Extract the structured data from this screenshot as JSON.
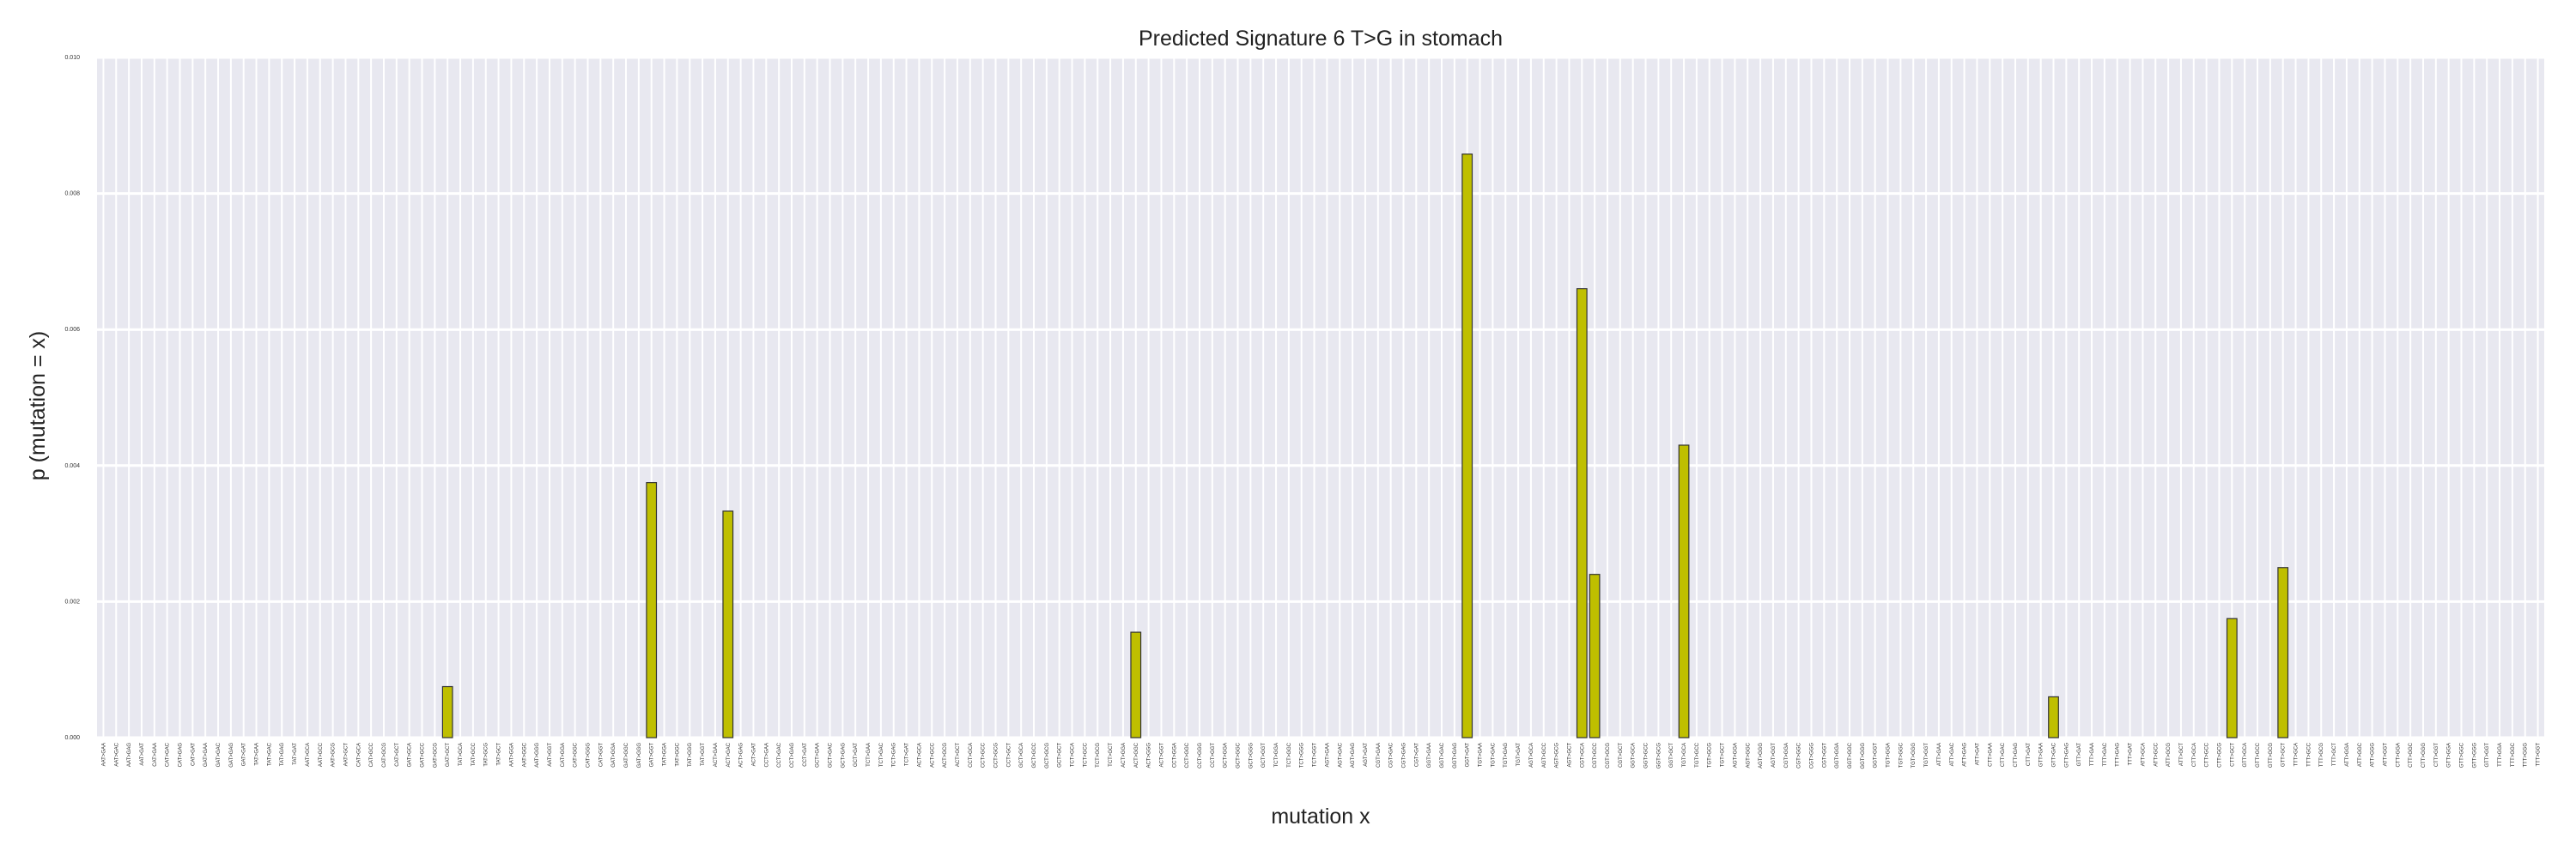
{
  "chart_data": {
    "type": "bar",
    "title": "Predicted Signature 6 T>G in stomach",
    "xlabel": "mutation x",
    "ylabel": "p (mutation = x)",
    "ylim": [
      0,
      0.01
    ],
    "yticks": [
      "0.000",
      "0.002",
      "0.004",
      "0.006",
      "0.008",
      "0.010"
    ],
    "grid": true,
    "background_color": "#e8e8f0",
    "grid_color": "#ffffff",
    "bar_color": "#bfbf00",
    "bar_edge_color": "#333333",
    "categories": [
      "AAT>GAA",
      "AAT>GAC",
      "AAT>GAG",
      "AAT>GAT",
      "CAT>GAA",
      "CAT>GAC",
      "CAT>GAG",
      "CAT>GAT",
      "GAT>GAA",
      "GAT>GAC",
      "GAT>GAG",
      "GAT>GAT",
      "TAT>GAA",
      "TAT>GAC",
      "TAT>GAG",
      "TAT>GAT",
      "AAT>GCA",
      "AAT>GCC",
      "AAT>GCG",
      "AAT>GCT",
      "CAT>GCA",
      "CAT>GCC",
      "CAT>GCG",
      "CAT>GCT",
      "GAT>GCA",
      "GAT>GCC",
      "GAT>GCG",
      "GAT>GCT",
      "TAT>GCA",
      "TAT>GCC",
      "TAT>GCG",
      "TAT>GCT",
      "AAT>GGA",
      "AAT>GGC",
      "AAT>GGG",
      "AAT>GGT",
      "CAT>GGA",
      "CAT>GGC",
      "CAT>GGG",
      "CAT>GGT",
      "GAT>GGA",
      "GAT>GGC",
      "GAT>GGG",
      "GAT>GGT",
      "TAT>GGA",
      "TAT>GGC",
      "TAT>GGG",
      "TAT>GGT",
      "ACT>GAA",
      "ACT>GAC",
      "ACT>GAG",
      "ACT>GAT",
      "CCT>GAA",
      "CCT>GAC",
      "CCT>GAG",
      "CCT>GAT",
      "GCT>GAA",
      "GCT>GAC",
      "GCT>GAG",
      "GCT>GAT",
      "TCT>GAA",
      "TCT>GAC",
      "TCT>GAG",
      "TCT>GAT",
      "ACT>GCA",
      "ACT>GCC",
      "ACT>GCG",
      "ACT>GCT",
      "CCT>GCA",
      "CCT>GCC",
      "CCT>GCG",
      "CCT>GCT",
      "GCT>GCA",
      "GCT>GCC",
      "GCT>GCG",
      "GCT>GCT",
      "TCT>GCA",
      "TCT>GCC",
      "TCT>GCG",
      "TCT>GCT",
      "ACT>GGA",
      "ACT>GGC",
      "ACT>GGG",
      "ACT>GGT",
      "CCT>GGA",
      "CCT>GGC",
      "CCT>GGG",
      "CCT>GGT",
      "GCT>GGA",
      "GCT>GGC",
      "GCT>GGG",
      "GCT>GGT",
      "TCT>GGA",
      "TCT>GGC",
      "TCT>GGG",
      "TCT>GGT",
      "AGT>GAA",
      "AGT>GAC",
      "AGT>GAG",
      "AGT>GAT",
      "CGT>GAA",
      "CGT>GAC",
      "CGT>GAG",
      "CGT>GAT",
      "GGT>GAA",
      "GGT>GAC",
      "GGT>GAG",
      "GGT>GAT",
      "TGT>GAA",
      "TGT>GAC",
      "TGT>GAG",
      "TGT>GAT",
      "AGT>GCA",
      "AGT>GCC",
      "AGT>GCG",
      "AGT>GCT",
      "CGT>GCA",
      "CGT>GCC",
      "CGT>GCG",
      "CGT>GCT",
      "GGT>GCA",
      "GGT>GCC",
      "GGT>GCG",
      "GGT>GCT",
      "TGT>GCA",
      "TGT>GCC",
      "TGT>GCG",
      "TGT>GCT",
      "AGT>GGA",
      "AGT>GGC",
      "AGT>GGG",
      "AGT>GGT",
      "CGT>GGA",
      "CGT>GGC",
      "CGT>GGG",
      "CGT>GGT",
      "GGT>GGA",
      "GGT>GGC",
      "GGT>GGG",
      "GGT>GGT",
      "TGT>GGA",
      "TGT>GGC",
      "TGT>GGG",
      "TGT>GGT",
      "ATT>GAA",
      "ATT>GAC",
      "ATT>GAG",
      "ATT>GAT",
      "CTT>GAA",
      "CTT>GAC",
      "CTT>GAG",
      "CTT>GAT",
      "GTT>GAA",
      "GTT>GAC",
      "GTT>GAG",
      "GTT>GAT",
      "TTT>GAA",
      "TTT>GAC",
      "TTT>GAG",
      "TTT>GAT",
      "ATT>GCA",
      "ATT>GCC",
      "ATT>GCG",
      "ATT>GCT",
      "CTT>GCA",
      "CTT>GCC",
      "CTT>GCG",
      "CTT>GCT",
      "GTT>GCA",
      "GTT>GCC",
      "GTT>GCG",
      "GTT>GCT",
      "TTT>GCA",
      "TTT>GCC",
      "TTT>GCG",
      "TTT>GCT",
      "ATT>GGA",
      "ATT>GGC",
      "ATT>GGG",
      "ATT>GGT",
      "CTT>GGA",
      "CTT>GGC",
      "CTT>GGG",
      "CTT>GGT",
      "GTT>GGA",
      "GTT>GGC",
      "GTT>GGG",
      "GTT>GGT",
      "TTT>GGA",
      "TTT>GGC",
      "TTT>GGG",
      "TTT>GGT"
    ],
    "values": [
      0,
      0,
      0,
      0,
      0,
      0,
      0,
      0,
      0,
      0,
      0,
      0,
      0,
      0,
      0,
      0,
      0,
      0,
      0,
      0,
      0,
      0,
      0,
      0,
      0,
      0,
      0,
      0.00075,
      0,
      0,
      0,
      0,
      0,
      0,
      0,
      0,
      0,
      0,
      0,
      0,
      0,
      0,
      0,
      0.00375,
      0,
      0,
      0,
      0,
      0,
      0.00333,
      0,
      0,
      0,
      0,
      0,
      0,
      0,
      0,
      0,
      0,
      0,
      0,
      0,
      0,
      0,
      0,
      0,
      0,
      0,
      0,
      0,
      0,
      0,
      0,
      0,
      0,
      0,
      0,
      0,
      0,
      0,
      0.00155,
      0,
      0,
      0,
      0,
      0,
      0,
      0,
      0,
      0,
      0,
      0,
      0,
      0,
      0,
      0,
      0,
      0,
      0,
      0,
      0,
      0,
      0,
      0,
      0,
      0,
      0.00858,
      0,
      0,
      0,
      0,
      0,
      0,
      0,
      0,
      0.0066,
      0.0024,
      0,
      0,
      0,
      0,
      0,
      0,
      0.0043,
      0,
      0,
      0,
      0,
      0,
      0,
      0,
      0,
      0,
      0,
      0,
      0,
      0,
      0,
      0,
      0,
      0,
      0,
      0,
      0,
      0,
      0,
      0,
      0,
      0,
      0,
      0,
      0,
      0.0006,
      0,
      0,
      0,
      0,
      0,
      0,
      0,
      0,
      0,
      0,
      0,
      0,
      0,
      0.00175,
      0,
      0,
      0,
      0.0025,
      0,
      0,
      0,
      0,
      0,
      0,
      0,
      0,
      0,
      0,
      0,
      0,
      0,
      0,
      0,
      0,
      0,
      0,
      0,
      0
    ]
  }
}
